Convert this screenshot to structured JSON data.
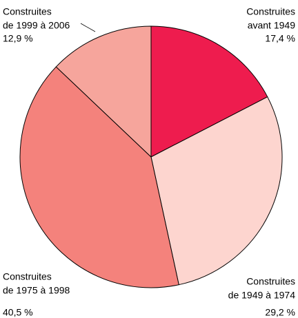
{
  "chart_data": {
    "type": "pie",
    "categories": [
      [
        "Construites",
        "avant 1949"
      ],
      [
        "Construites",
        "de 1949 à 1974"
      ],
      [
        "Construites",
        "de 1975 à 1998"
      ],
      [
        "Construites",
        "de 1999 à 2006"
      ]
    ],
    "values": [
      17.4,
      29.2,
      40.5,
      12.9
    ],
    "value_labels": [
      "17,4 %",
      "29,2 %",
      "40,5 %",
      "12,9 %"
    ],
    "colors": [
      "#ee1c4e",
      "#fdd5cf",
      "#f4827c",
      "#f6a59c"
    ]
  }
}
